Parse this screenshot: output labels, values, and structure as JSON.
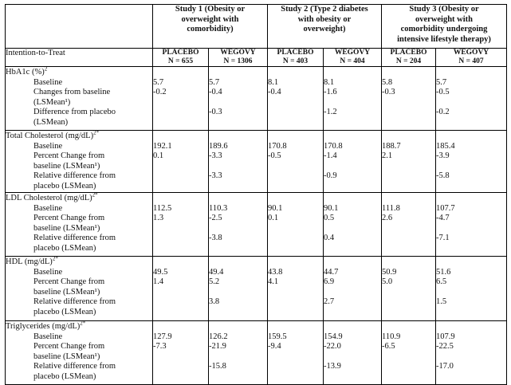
{
  "studies": [
    {
      "title": "Study 1 (Obesity or overweight with comorbidity)",
      "lines": [
        "Study 1 (Obesity or",
        "overweight with",
        "comorbidity)"
      ]
    },
    {
      "title": "Study 2 (Type 2 diabetes with obesity or overweight)",
      "lines": [
        "Study 2 (Type 2 diabetes",
        "with obesity or",
        "overweight)"
      ]
    },
    {
      "title": "Study 3 (Obesity or overweight with comorbidity undergoing intensive lifestyle therapy)",
      "lines": [
        "Study 3 (Obesity or",
        "overweight with",
        "comorbidity undergoing",
        "intensive lifestyle therapy)"
      ]
    }
  ],
  "itt_label": "Intention-to-Treat",
  "arms": [
    {
      "name": "PLACEBO",
      "n": "N = 655"
    },
    {
      "name": "WEGOVY",
      "n": "N = 1306"
    },
    {
      "name": "PLACEBO",
      "n": "N = 403"
    },
    {
      "name": "WEGOVY",
      "n": "N = 404"
    },
    {
      "name": "PLACEBO",
      "n": "N = 204"
    },
    {
      "name": "WEGOVY",
      "n": "N = 407"
    }
  ],
  "parameters": [
    {
      "title": "HbA1c (%)",
      "sup": "2",
      "sub_lines": [
        [
          "Baseline"
        ],
        [
          "Changes from baseline",
          "(LSMean",
          ")"
        ],
        [
          "Difference from placebo",
          "(LSMean)"
        ]
      ],
      "sub": [
        {
          "lines": [
            "Baseline"
          ]
        },
        {
          "lines": [
            "Changes from baseline",
            "(LSMean¹)"
          ]
        },
        {
          "lines": [
            "Difference from placebo",
            "(LSMean)"
          ]
        }
      ],
      "values": [
        [
          "5.7",
          "-0.2",
          ""
        ],
        [
          "5.7",
          "-0.4",
          "-0.3"
        ],
        [
          "8.1",
          "-0.4",
          ""
        ],
        [
          "8.1",
          "-1.6",
          "-1.2"
        ],
        [
          "5.8",
          "-0.3",
          ""
        ],
        [
          "5.7",
          "-0.5",
          "-0.2"
        ]
      ]
    },
    {
      "title": "Total Cholesterol (mg/dL)",
      "sup": "2*",
      "sub": [
        {
          "lines": [
            "Baseline"
          ]
        },
        {
          "lines": [
            "Percent Change from",
            "baseline (LSMean¹)"
          ]
        },
        {
          "lines": [
            "Relative difference from",
            "placebo (LSMean)"
          ]
        }
      ],
      "values": [
        [
          "192.1",
          "0.1",
          ""
        ],
        [
          "189.6",
          "-3.3",
          "-3.3"
        ],
        [
          "170.8",
          "-0.5",
          ""
        ],
        [
          "170.8",
          "-1.4",
          "-0.9"
        ],
        [
          "188.7",
          "2.1",
          ""
        ],
        [
          "185.4",
          "-3.9",
          "-5.8"
        ]
      ]
    },
    {
      "title": "LDL Cholesterol (mg/dL)",
      "sup": "2*",
      "sub": [
        {
          "lines": [
            "Baseline"
          ]
        },
        {
          "lines": [
            "Percent Change from",
            "baseline (LSMean¹)"
          ]
        },
        {
          "lines": [
            "Relative difference from",
            "placebo (LSMean)"
          ]
        }
      ],
      "values": [
        [
          "112.5",
          "1.3",
          ""
        ],
        [
          "110.3",
          "-2.5",
          "-3.8"
        ],
        [
          "90.1",
          "0.1",
          ""
        ],
        [
          "90.1",
          "0.5",
          "0.4"
        ],
        [
          "111.8",
          "2.6",
          ""
        ],
        [
          "107.7",
          "-4.7",
          "-7.1"
        ]
      ]
    },
    {
      "title": "HDL (mg/dL)",
      "sup": "2*",
      "sub": [
        {
          "lines": [
            "Baseline"
          ]
        },
        {
          "lines": [
            "Percent Change from",
            "baseline (LSMean¹)"
          ]
        },
        {
          "lines": [
            "Relative difference from",
            "placebo (LSMean)"
          ]
        }
      ],
      "values": [
        [
          "49.5",
          "1.4",
          ""
        ],
        [
          "49.4",
          "5.2",
          "3.8"
        ],
        [
          "43.8",
          "4.1",
          ""
        ],
        [
          "44.7",
          "6.9",
          "2.7"
        ],
        [
          "50.9",
          "5.0",
          ""
        ],
        [
          "51.6",
          "6.5",
          "1.5"
        ]
      ]
    },
    {
      "title": "Triglycerides (mg/dL)",
      "sup": "2*",
      "sub": [
        {
          "lines": [
            "Baseline"
          ]
        },
        {
          "lines": [
            "Percent Change from",
            "baseline (LSMean¹)"
          ]
        },
        {
          "lines": [
            "Relative difference from",
            "placebo (LSMean)"
          ]
        }
      ],
      "values": [
        [
          "127.9",
          "-7.3",
          ""
        ],
        [
          "126.2",
          "-21.9",
          "-15.8"
        ],
        [
          "159.5",
          "-9.4",
          ""
        ],
        [
          "154.9",
          "-22.0",
          "-13.9"
        ],
        [
          "110.9",
          "-6.5",
          ""
        ],
        [
          "107.9",
          "-22.5",
          "-17.0"
        ]
      ]
    }
  ]
}
